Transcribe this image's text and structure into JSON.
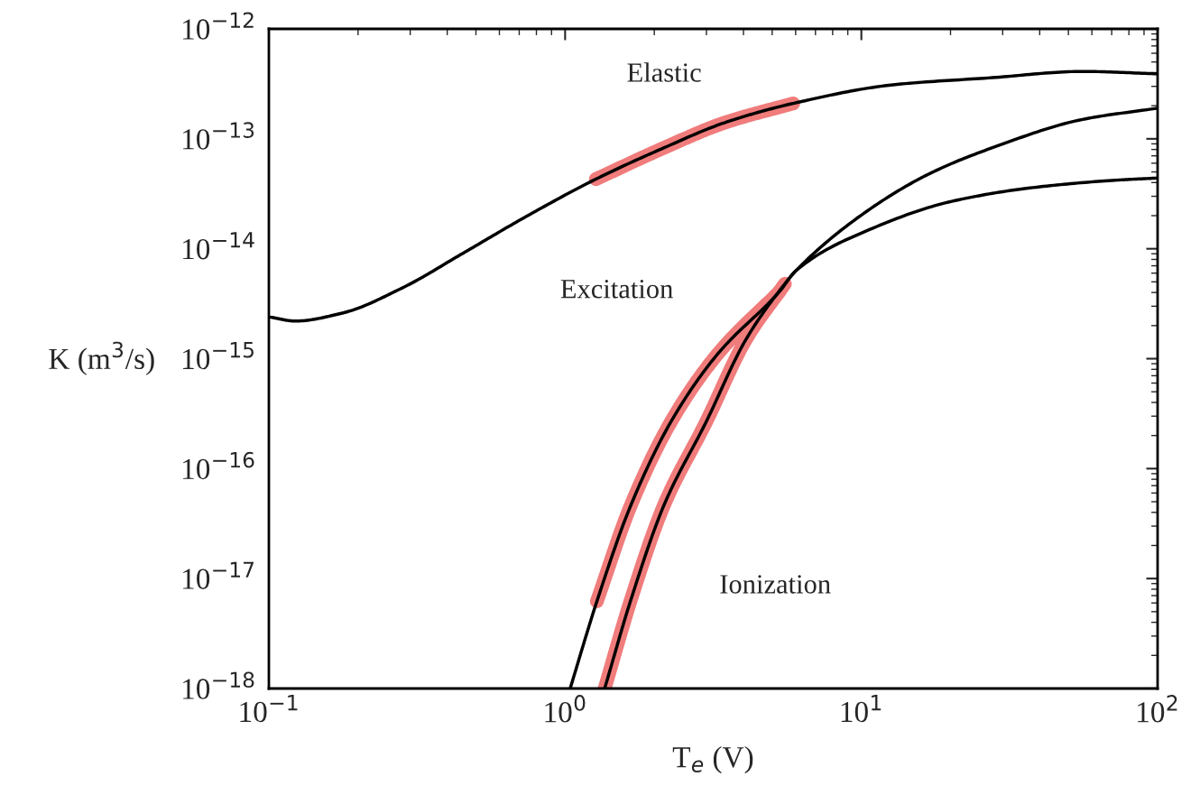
{
  "chart_data": {
    "type": "line",
    "xlabel": "T$_{e}$ (V)",
    "ylabel": "K (m$^{3}$/s)",
    "log": "xy",
    "grid": false,
    "marker": "none",
    "line_style": "solid",
    "xlim": [
      0.1,
      100
    ],
    "ylim": [
      1e-18,
      1e-12
    ],
    "xticks": [
      {
        "value": 0.1,
        "label": "10$^{−1}$"
      },
      {
        "value": 1,
        "label": "10$^{0}$"
      },
      {
        "value": 10,
        "label": "10$^{1}$"
      },
      {
        "value": 100,
        "label": "10$^{2}$"
      }
    ],
    "yticks": [
      {
        "value": 1e-18,
        "label": "10$^{−18}$"
      },
      {
        "value": 1e-17,
        "label": "10$^{−17}$"
      },
      {
        "value": 1e-16,
        "label": "10$^{−16}$"
      },
      {
        "value": 1e-15,
        "label": "10$^{−15}$"
      },
      {
        "value": 1e-14,
        "label": "10$^{−14}$"
      },
      {
        "value": 1e-13,
        "label": "10$^{−13}$"
      },
      {
        "value": 1e-12,
        "label": "10$^{−12}$"
      }
    ],
    "series": [
      {
        "color": "#f07c7c",
        "x": [
          1.27,
          2.16,
          3.45,
          5.89
        ],
        "values": [
          4.3e-14,
          8.3e-14,
          1.4e-13,
          2.1e-13
        ]
      },
      {
        "color": "#f07c7c",
        "x": [
          1.28,
          1.67,
          2.3,
          3.27,
          5.3
        ],
        "values": [
          6.2e-18,
          4.7e-17,
          2.8e-16,
          1.1e-15,
          4.1e-15
        ]
      },
      {
        "color": "#f07c7c",
        "x": [
          1.36,
          1.67,
          2.16,
          2.98,
          4.08,
          5.52
        ],
        "values": [
          1e-18,
          6.5e-18,
          4.7e-17,
          2.6e-16,
          1.5e-15,
          4.8e-15
        ]
      },
      {
        "name": "Elastic",
        "color": "#000000",
        "x": [
          0.1,
          0.123,
          0.177,
          0.282,
          0.452,
          0.723,
          1.27,
          2.16,
          3.45,
          5.89,
          12.8,
          27.7,
          55.8,
          100
        ],
        "values": [
          2.4e-15,
          2.2e-15,
          2.6e-15,
          4.4e-15,
          9.1e-15,
          1.9e-14,
          4.3e-14,
          8.3e-14,
          1.4e-13,
          2.1e-13,
          3.1e-13,
          3.6e-13,
          4.1e-13,
          3.9e-13
        ]
      },
      {
        "name": "Excitation",
        "color": "#000000",
        "x": [
          1.04,
          1.28,
          1.67,
          2.3,
          3.27,
          5.3,
          6.01,
          10.7,
          20.2,
          38.0,
          71.9,
          100
        ],
        "values": [
          1e-18,
          6.2e-18,
          4.7e-17,
          2.8e-16,
          1.1e-15,
          4.1e-15,
          6.3e-15,
          1.5e-14,
          2.7e-14,
          3.6e-14,
          4.2e-14,
          4.4e-14
        ]
      },
      {
        "name": "Ionization",
        "color": "#000000",
        "x": [
          1.36,
          1.67,
          2.16,
          2.98,
          4.08,
          5.52,
          6.01,
          10.7,
          17.2,
          27.7,
          55.8,
          100
        ],
        "values": [
          1e-18,
          6.5e-18,
          4.7e-17,
          2.6e-16,
          1.5e-15,
          4.8e-15,
          6.3e-15,
          2.3e-14,
          4.9e-14,
          8.3e-14,
          1.5e-13,
          1.9e-13
        ]
      }
    ]
  }
}
